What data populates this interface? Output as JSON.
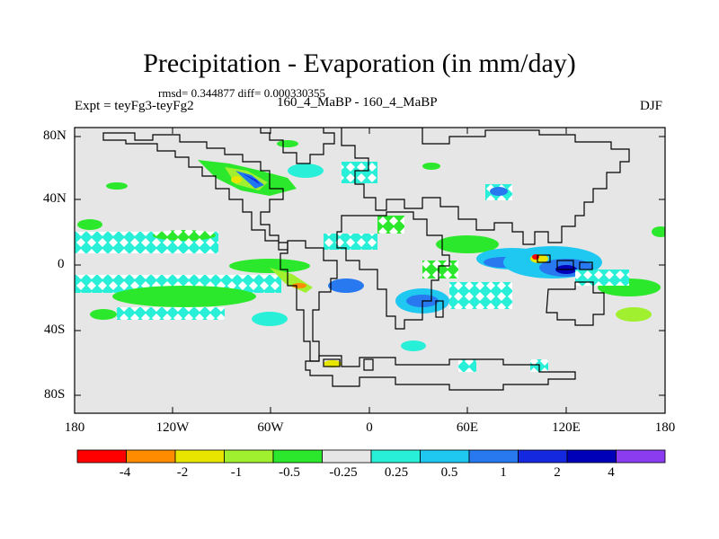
{
  "title": "Precipitation - Evaporation (in mm/day)",
  "stats": "rmsd= 0.344877 diff= 0.000330355",
  "experiment": "Expt = teyFg3-teyFg2",
  "cases": "160_4_MaBP - 160_4_MaBP",
  "season": "DJF",
  "lat_labels": [
    "80N",
    "40N",
    "0",
    "40S",
    "80S"
  ],
  "lon_labels": [
    "180",
    "120W",
    "60W",
    "0",
    "60E",
    "120E",
    "180"
  ],
  "colorbar": {
    "labels": [
      "-4",
      "-2",
      "-1",
      "-0.5",
      "-0.25",
      "0.25",
      "0.5",
      "1",
      "2",
      "4"
    ],
    "colors": [
      "#ff0000",
      "#ff8c00",
      "#e8e600",
      "#a0f030",
      "#2ce82c",
      "#e6e6e6",
      "#28f0d8",
      "#1ec8f0",
      "#2878f0",
      "#1428e0",
      "#0000b8",
      "#8c3cf0"
    ]
  },
  "colors": {
    "background": "#e6e6e6",
    "land_outline": "#000000"
  }
}
